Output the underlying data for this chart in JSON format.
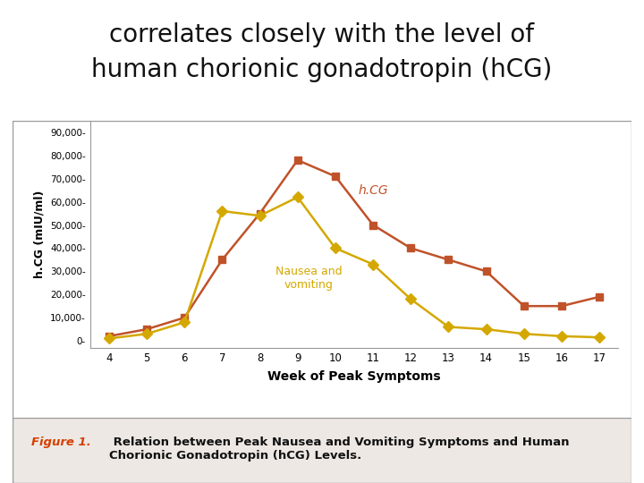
{
  "title_line1": "correlates closely with the level of",
  "title_line2": "human chorionic gonadotropin (hCG)",
  "title_fontsize": 20,
  "title_color": "#111111",
  "weeks": [
    4,
    5,
    6,
    7,
    8,
    9,
    10,
    11,
    12,
    13,
    14,
    15,
    16,
    17
  ],
  "hcg_values": [
    2000,
    5000,
    10000,
    35000,
    55000,
    78000,
    71000,
    50000,
    40000,
    35000,
    30000,
    15000,
    15000,
    19000
  ],
  "nausea_values": [
    1000,
    3000,
    8000,
    56000,
    54000,
    62000,
    40000,
    33000,
    18000,
    6000,
    5000,
    3000,
    2000,
    1500
  ],
  "hcg_color": "#c0522a",
  "nausea_color": "#d4a800",
  "hcg_marker": "s",
  "nausea_marker": "D",
  "hcg_label": "h.CG",
  "nausea_label": "Nausea and\nvomiting",
  "xlabel": "Week of Peak Symptoms",
  "ylabel": "h.CG (mIU/ml)",
  "yticks": [
    0,
    10000,
    20000,
    30000,
    40000,
    50000,
    60000,
    70000,
    80000,
    90000
  ],
  "ytick_labels": [
    "0-",
    "10,000-",
    "20,000-",
    "30,000-",
    "40,000-",
    "50,000-",
    "60,000-",
    "70,000-",
    "80,000-",
    "90,000-"
  ],
  "ylim": [
    -3000,
    95000
  ],
  "xticks": [
    4,
    5,
    6,
    7,
    8,
    9,
    10,
    11,
    12,
    13,
    14,
    15,
    16,
    17
  ],
  "xlim": [
    3.5,
    17.5
  ],
  "figure_caption_prefix": "Figure 1.",
  "figure_caption_body": " Relation between Peak Nausea and Vomiting Symptoms and Human\nChorionic Gonadotropin (hCG) Levels.",
  "caption_prefix_color": "#d43f00",
  "caption_body_color": "#111111",
  "caption_fontsize": 9.5,
  "plot_bg": "#ffffff",
  "border_color": "#999999",
  "outer_bg": "#ffffff",
  "caption_bg": "#ede8e4",
  "linewidth": 1.8,
  "markersize": 6
}
